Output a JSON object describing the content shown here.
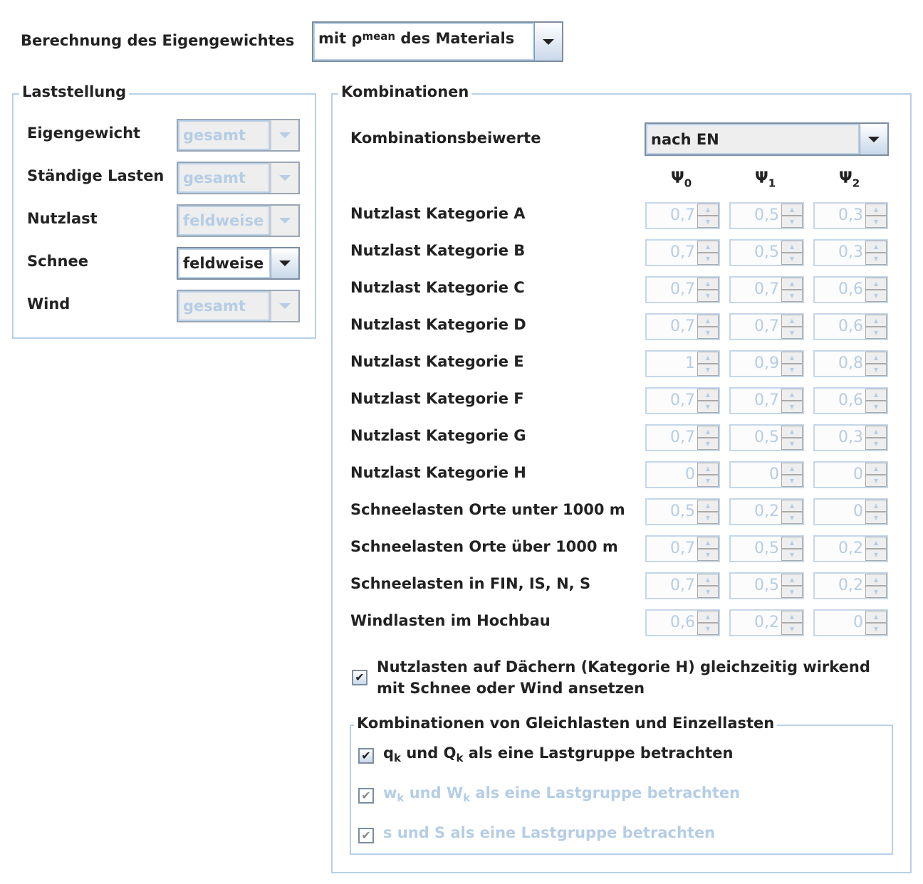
{
  "calc": {
    "label": "Berechnung des Eigengewichtes",
    "value_prefix": "mit ρ",
    "value_sub": "mean",
    "value_suffix": " des Materials"
  },
  "laststellung": {
    "title": "Laststellung",
    "rows": [
      {
        "label": "Eigengewicht",
        "value": "gesamt",
        "enabled": false
      },
      {
        "label": "Ständige Lasten",
        "value": "gesamt",
        "enabled": false
      },
      {
        "label": "Nutzlast",
        "value": "feldweise",
        "enabled": false
      },
      {
        "label": "Schnee",
        "value": "feldweise",
        "enabled": true
      },
      {
        "label": "Wind",
        "value": "gesamt",
        "enabled": false
      }
    ]
  },
  "kombinationen": {
    "title": "Kombinationen",
    "beiwerte_label": "Kombinationsbeiwerte",
    "beiwerte_value": "nach EN",
    "headers": [
      {
        "sym": "Ψ",
        "sub": "0"
      },
      {
        "sym": "Ψ",
        "sub": "1"
      },
      {
        "sym": "Ψ",
        "sub": "2"
      }
    ],
    "rows": [
      {
        "label": "Nutzlast Kategorie A",
        "v": [
          "0,7",
          "0,5",
          "0,3"
        ]
      },
      {
        "label": "Nutzlast Kategorie B",
        "v": [
          "0,7",
          "0,5",
          "0,3"
        ]
      },
      {
        "label": "Nutzlast Kategorie C",
        "v": [
          "0,7",
          "0,7",
          "0,6"
        ]
      },
      {
        "label": "Nutzlast Kategorie D",
        "v": [
          "0,7",
          "0,7",
          "0,6"
        ]
      },
      {
        "label": "Nutzlast Kategorie E",
        "v": [
          "1",
          "0,9",
          "0,8"
        ]
      },
      {
        "label": "Nutzlast Kategorie F",
        "v": [
          "0,7",
          "0,7",
          "0,6"
        ]
      },
      {
        "label": "Nutzlast Kategorie G",
        "v": [
          "0,7",
          "0,5",
          "0,3"
        ]
      },
      {
        "label": "Nutzlast Kategorie H",
        "v": [
          "0",
          "0",
          "0"
        ]
      },
      {
        "label": "Schneelasten Orte unter 1000 m",
        "v": [
          "0,5",
          "0,2",
          "0"
        ]
      },
      {
        "label": "Schneelasten Orte über 1000 m",
        "v": [
          "0,7",
          "0,5",
          "0,2"
        ]
      },
      {
        "label": "Schneelasten in FIN, IS, N, S",
        "v": [
          "0,7",
          "0,5",
          "0,2"
        ]
      },
      {
        "label": "Windlasten im Hochbau",
        "v": [
          "0,6",
          "0,2",
          "0"
        ]
      }
    ],
    "roof_check": {
      "line1": "Nutzlasten auf Dächern (Kategorie H) gleichzeitig wirkend",
      "line2": "mit Schnee oder Wind ansetzen",
      "checked": true
    },
    "group": {
      "title": "Kombinationen von Gleichlasten und Einzellasten",
      "items": [
        {
          "a": "q",
          "b": " und Q",
          "c": " als eine Lastgruppe betrachten",
          "sub": "k",
          "checked": true,
          "enabled": true
        },
        {
          "a": "w",
          "b": " und W",
          "c": " als eine Lastgruppe betrachten",
          "sub": "k",
          "checked": true,
          "enabled": false
        },
        {
          "a": "s und S als eine Lastgruppe betrachten",
          "b": "",
          "c": "",
          "sub": "",
          "checked": true,
          "enabled": false
        }
      ]
    }
  }
}
